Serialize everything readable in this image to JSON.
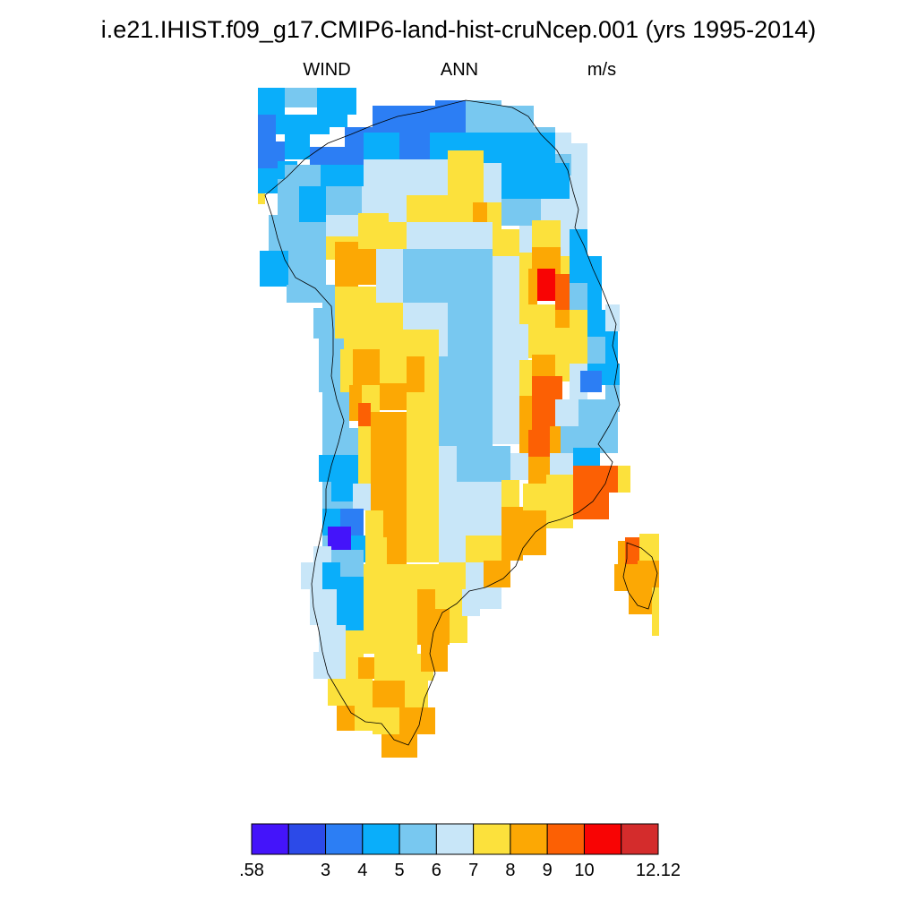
{
  "title": "i.e21.IHIST.f09_g17.CMIP6-land-hist-cruNcep.001 (yrs 1995-2014)",
  "variable": "WIND",
  "season": "ANN",
  "units": "m/s",
  "colorbar": {
    "colors": [
      "#4414fa",
      "#2c4ae8",
      "#2c7ef4",
      "#0aaefa",
      "#78c8f0",
      "#c8e6f8",
      "#fce13c",
      "#fca804",
      "#fc6004",
      "#f80404",
      "#d42c2c"
    ],
    "labels": [
      {
        "text": ".58",
        "boundary": 0
      },
      {
        "text": "3",
        "boundary": 2
      },
      {
        "text": "4",
        "boundary": 3
      },
      {
        "text": "5",
        "boundary": 4
      },
      {
        "text": "6",
        "boundary": 5
      },
      {
        "text": "7",
        "boundary": 6
      },
      {
        "text": "8",
        "boundary": 7
      },
      {
        "text": "9",
        "boundary": 8
      },
      {
        "text": "10",
        "boundary": 9
      },
      {
        "text": "12.12",
        "boundary": 11
      }
    ]
  }
}
